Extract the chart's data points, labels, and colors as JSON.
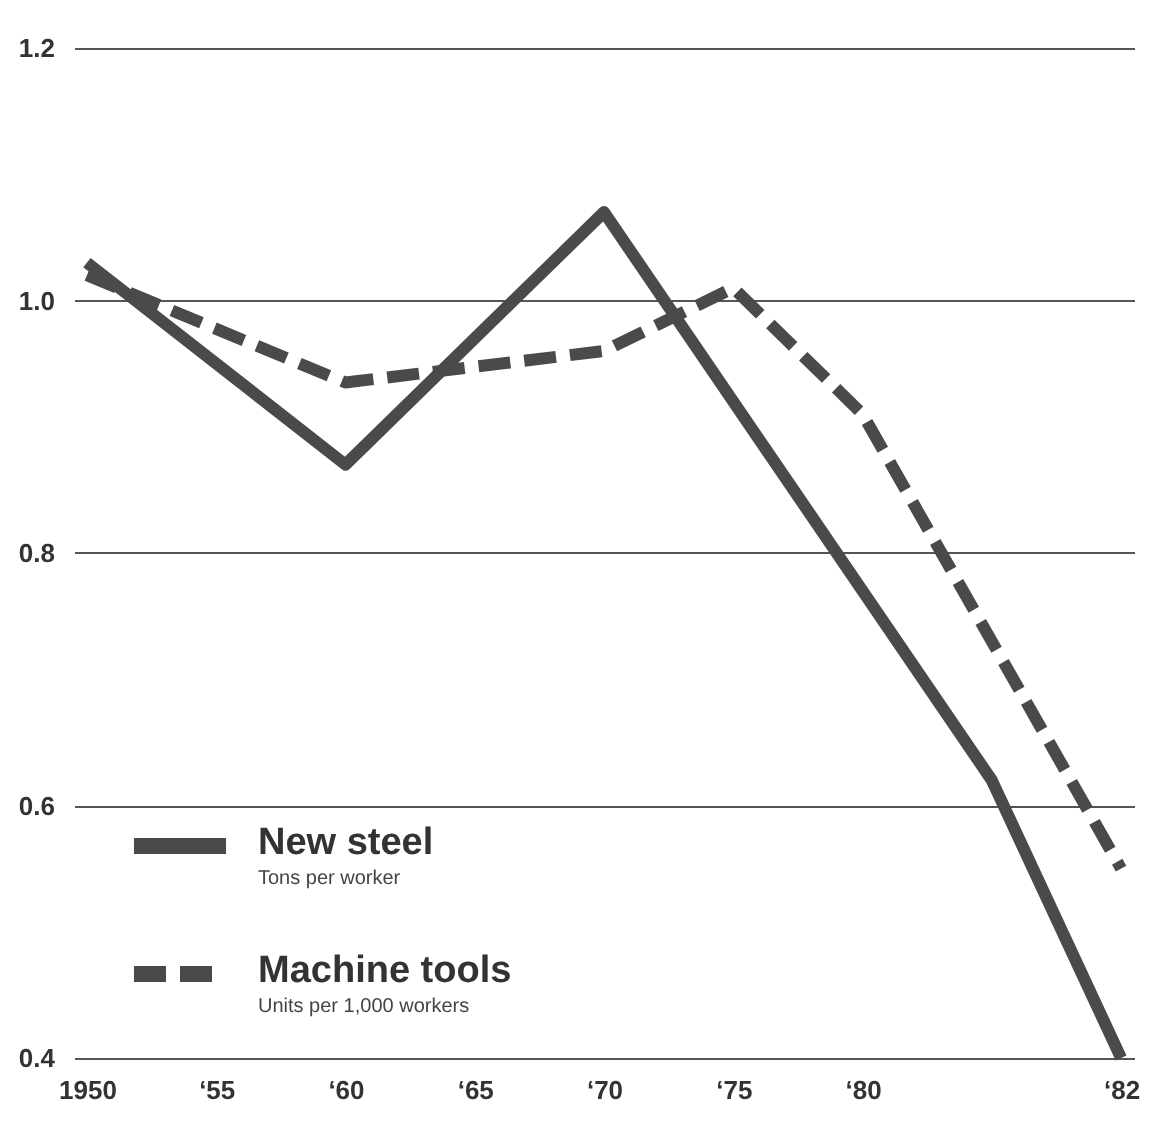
{
  "chart_data": {
    "type": "line",
    "categories": [
      "1950",
      "‘55",
      "‘60",
      "‘65",
      "‘70",
      "‘75",
      "‘80",
      null,
      "‘82"
    ],
    "series": [
      {
        "name": "New steel",
        "color": "#4a4a4a",
        "line_style": "solid",
        "values": [
          1.03,
          null,
          0.87,
          null,
          1.07,
          null,
          null,
          0.62,
          0.4
        ]
      },
      {
        "name": "Machine tools",
        "color": "#4a4a4a",
        "line_style": "dashed",
        "values": [
          1.02,
          null,
          0.935,
          null,
          0.96,
          1.01,
          0.91,
          null,
          0.55
        ]
      }
    ],
    "annotations": [
      "Tons per worker",
      "Units per 1,000 workers"
    ],
    "ylim": [
      0.4,
      1.2
    ],
    "yticks": [
      0.4,
      0.6,
      0.8,
      {
        "value": 1.0,
        "label": "1.0"
      },
      1.2
    ],
    "grid": "y",
    "legend": "bottom left",
    "marker": "none"
  }
}
